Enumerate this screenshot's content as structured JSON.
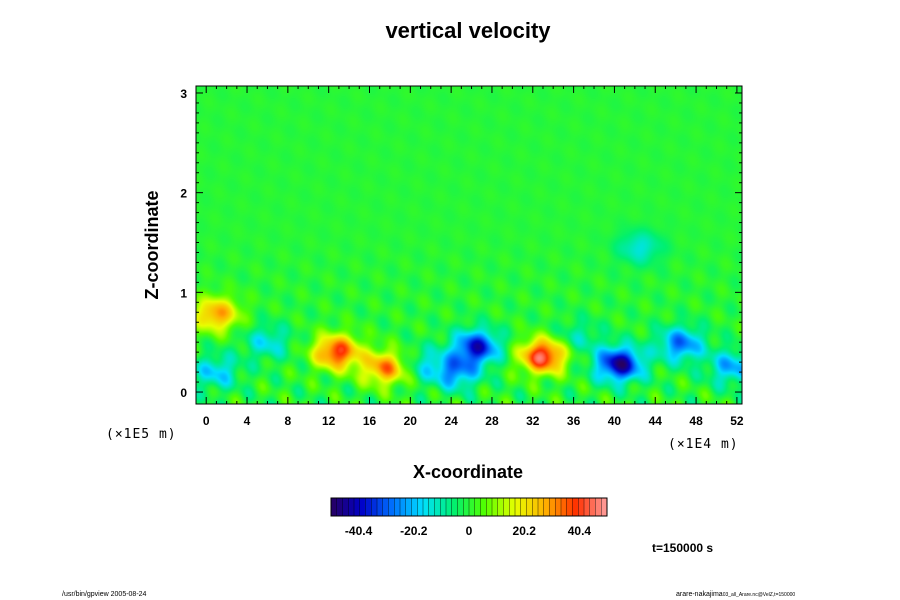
{
  "chart_data": {
    "type": "heatmap",
    "title": "vertical velocity",
    "xlabel": "X-coordinate",
    "ylabel": "Z-coordinate",
    "x_scale_label": "(×1E4 m)",
    "y_scale_label": "(×1E5 m)",
    "x_ticks": [
      "0",
      "4",
      "8",
      "12",
      "16",
      "20",
      "24",
      "28",
      "32",
      "36",
      "40",
      "44",
      "48",
      "52"
    ],
    "y_ticks": [
      "0",
      "1",
      "2",
      "3"
    ],
    "xlim": [
      -1,
      52.5
    ],
    "ylim": [
      -0.12,
      3.07
    ],
    "background_value": 0,
    "features": [
      {
        "x": 12.8,
        "z": 0.4,
        "value": 40
      },
      {
        "x": 17.5,
        "z": 0.24,
        "value": 32
      },
      {
        "x": 33.0,
        "z": 0.36,
        "value": 45
      },
      {
        "x": 26.5,
        "z": 0.45,
        "value": -38
      },
      {
        "x": 24.5,
        "z": 0.2,
        "value": -25
      },
      {
        "x": 40.5,
        "z": 0.28,
        "value": -45
      },
      {
        "x": 46.5,
        "z": 0.48,
        "value": -28
      },
      {
        "x": 1.0,
        "z": 0.2,
        "value": -18
      },
      {
        "x": 1.0,
        "z": 0.78,
        "value": 30
      },
      {
        "x": 6.0,
        "z": 0.5,
        "value": -15
      },
      {
        "x": 51.5,
        "z": 0.25,
        "value": -22
      },
      {
        "x": 21.5,
        "z": 0.28,
        "value": -12
      },
      {
        "x": 36.5,
        "z": 0.55,
        "value": -10
      },
      {
        "x": 42.5,
        "z": 1.45,
        "value": -14
      }
    ],
    "colorbar": {
      "ticks": [
        "-40.4",
        "-20.2",
        "0",
        "20.2",
        "40.4"
      ],
      "range": [
        -50.5,
        50.5
      ]
    },
    "colormap": [
      "#280060",
      "#0000c8",
      "#0070ff",
      "#00e0ff",
      "#00f070",
      "#50ff00",
      "#e8ff00",
      "#ffb000",
      "#ff3000",
      "#ffa0a0"
    ],
    "time_label": "t=150000 s",
    "footer_left": "/usr/bin/gpview 2005-08-24",
    "footer_right": "arare-nakajima",
    "footer_right_small": "03_all_Arare.nc@VelZ,t=150000"
  }
}
